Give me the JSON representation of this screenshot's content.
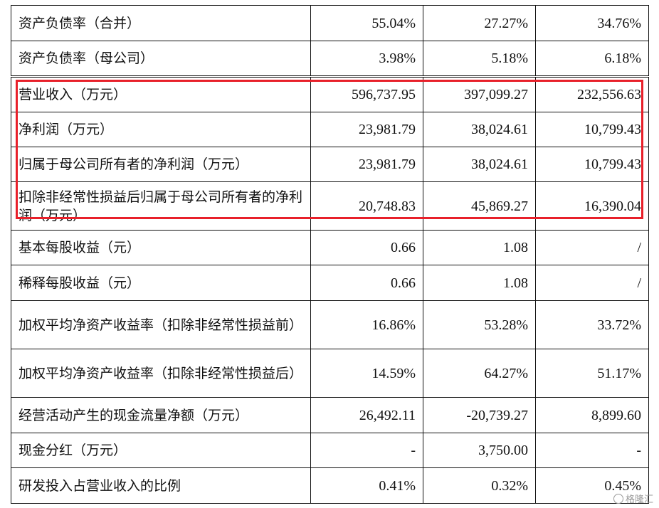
{
  "rows": [
    {
      "label": "资产负债率（合并）",
      "values": [
        "55.04%",
        "27.27%",
        "34.76%"
      ]
    },
    {
      "label": "资产负债率（母公司）",
      "values": [
        "3.98%",
        "5.18%",
        "6.18%"
      ]
    },
    {
      "label": "营业收入（万元）",
      "values": [
        "596,737.95",
        "397,099.27",
        "232,556.63"
      ]
    },
    {
      "label": "净利润（万元）",
      "values": [
        "23,981.79",
        "38,024.61",
        "10,799.43"
      ]
    },
    {
      "label": "归属于母公司所有者的净利润（万元）",
      "values": [
        "23,981.79",
        "38,024.61",
        "10,799.43"
      ]
    },
    {
      "label": "扣除非经常性损益后归属于母公司所有者的净利润（万元）",
      "values": [
        "20,748.83",
        "45,869.27",
        "16,390.04"
      ]
    },
    {
      "label": "基本每股收益（元）",
      "values": [
        "0.66",
        "1.08",
        "/"
      ]
    },
    {
      "label": "稀释每股收益（元）",
      "values": [
        "0.66",
        "1.08",
        "/"
      ]
    },
    {
      "label": "加权平均净资产收益率（扣除非经常性损益前）",
      "values": [
        "16.86%",
        "53.28%",
        "33.72%"
      ]
    },
    {
      "label": "加权平均净资产收益率（扣除非经常性损益后）",
      "values": [
        "14.59%",
        "64.27%",
        "51.17%"
      ]
    },
    {
      "label": "经营活动产生的现金流量净额（万元）",
      "values": [
        "26,492.11",
        "-20,739.27",
        "8,899.60"
      ]
    },
    {
      "label": "现金分红（万元）",
      "values": [
        "-",
        "3,750.00",
        "-"
      ]
    },
    {
      "label": "研发投入占营业收入的比例",
      "values": [
        "0.41%",
        "0.32%",
        "0.45%"
      ]
    }
  ],
  "highlight_color": "#e8202a",
  "watermark": {
    "icon": "gelonghui-logo-icon",
    "text": "格隆汇"
  }
}
